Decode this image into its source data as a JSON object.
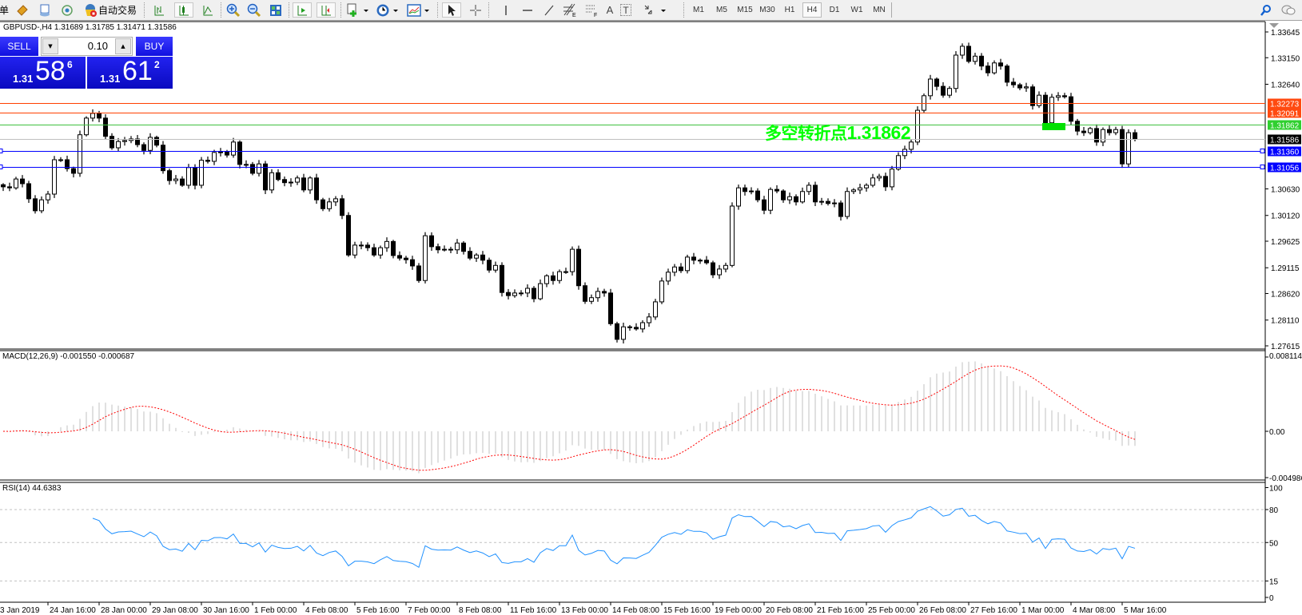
{
  "toolbar": {
    "left_clip_text": "单",
    "auto_trading_label": "自动交易",
    "icons": [
      "market-watch-icon",
      "terminal-icon",
      "signal-icon",
      "auto-trading-icon",
      "bar-chart-icon",
      "candlestick-icon",
      "line-chart-icon",
      "zoom-in-icon",
      "zoom-out-icon",
      "tile-windows-icon",
      "auto-scroll-icon",
      "chart-shift-icon",
      "indicators-icon",
      "periods-icon",
      "templates-icon",
      "cursor-icon",
      "crosshair-icon",
      "vertical-line-icon",
      "horizontal-line-icon",
      "trendline-icon",
      "fibonacci-icon",
      "text-icon",
      "text-label-icon",
      "arrows-icon",
      "search-icon",
      "chat-icon"
    ],
    "timeframes": [
      "M1",
      "M5",
      "M15",
      "M30",
      "H1",
      "H4",
      "D1",
      "W1",
      "MN"
    ],
    "active_timeframe": "H4",
    "fibo_sub": "E",
    "channel_sub": "F",
    "text_tool": "A",
    "label_tool": "T"
  },
  "symbol_header": "GBPUSD-,H4  1.31689 1.31785 1.31471 1.31586",
  "trade_panel": {
    "sell_label": "SELL",
    "buy_label": "BUY",
    "lot": "0.10",
    "sell_price": {
      "prefix": "1.31",
      "big": "58",
      "sup": "6"
    },
    "buy_price": {
      "prefix": "1.31",
      "big": "61",
      "sup": "2"
    },
    "color": "#1a1ae8"
  },
  "annotation": {
    "text": "多空转折点",
    "value": "1.31862",
    "color": "#00ff00"
  },
  "price_axis": {
    "labels": [
      "1.33645",
      "1.33150",
      "1.32640",
      "1.30630",
      "1.30120",
      "1.29625",
      "1.29115",
      "1.28620",
      "1.28110",
      "1.27615"
    ],
    "lines": [
      {
        "price": "1.32273",
        "color": "#ff4000",
        "tag_color": "#ff4a10"
      },
      {
        "price": "1.32091",
        "color": "#ff4000",
        "tag_color": "#ff4a10"
      },
      {
        "price": "1.31862",
        "color": "#40c040",
        "tag_color": "#30d030"
      },
      {
        "price": "1.31586",
        "color": "#c0c0c0",
        "tag_color": "#000000"
      },
      {
        "price": "1.31360",
        "color": "#0000ff",
        "tag_color": "#0000ff",
        "handles": true
      },
      {
        "price": "1.31056",
        "color": "#0000ff",
        "tag_color": "#0000ff",
        "handles": true
      }
    ]
  },
  "macd": {
    "label": "MACD(12,26,9) -0.001550 -0.000687",
    "axis": [
      "0.008114",
      "0.00",
      "-0.004986"
    ],
    "histogram_color": "#c0c0c0",
    "signal_color": "#ff0000"
  },
  "rsi": {
    "label": "RSI(14) 44.6383",
    "axis": [
      "100",
      "80",
      "50",
      "15",
      "0"
    ],
    "levels": [
      80,
      50,
      15
    ],
    "color": "#1e90ff"
  },
  "time_axis": [
    "3 Jan 2019",
    "24 Jan 16:00",
    "28 Jan 00:00",
    "29 Jan 08:00",
    "30 Jan 16:00",
    "1 Feb 00:00",
    "4 Feb 08:00",
    "5 Feb 16:00",
    "7 Feb 00:00",
    "8 Feb 08:00",
    "11 Feb 16:00",
    "13 Feb 00:00",
    "14 Feb 08:00",
    "15 Feb 16:00",
    "19 Feb 00:00",
    "20 Feb 08:00",
    "21 Feb 16:00",
    "25 Feb 00:00",
    "26 Feb 08:00",
    "27 Feb 16:00",
    "1 Mar 00:00",
    "4 Mar 08:00",
    "5 Mar 16:00"
  ],
  "chart_data": {
    "type": "candlestick",
    "symbol": "GBPUSD-",
    "timeframe": "H4",
    "ylim": [
      1.27615,
      1.33645
    ],
    "closes": [
      1.3067,
      1.3065,
      1.3082,
      1.3073,
      1.3044,
      1.3021,
      1.3042,
      1.3053,
      1.3119,
      1.3119,
      1.3102,
      1.3093,
      1.3167,
      1.3199,
      1.3208,
      1.3199,
      1.3164,
      1.3142,
      1.3154,
      1.3156,
      1.3159,
      1.3148,
      1.3137,
      1.3162,
      1.3147,
      1.3098,
      1.3079,
      1.3082,
      1.307,
      1.3104,
      1.307,
      1.3118,
      1.3116,
      1.3133,
      1.3134,
      1.3128,
      1.3153,
      1.311,
      1.311,
      1.3093,
      1.3111,
      1.3061,
      1.3094,
      1.3081,
      1.3075,
      1.3076,
      1.3084,
      1.3061,
      1.3084,
      1.3042,
      1.3025,
      1.3038,
      1.3044,
      1.3012,
      1.2936,
      1.2955,
      1.2955,
      1.295,
      1.2936,
      1.295,
      1.2962,
      1.2935,
      1.293,
      1.2927,
      1.2915,
      1.2887,
      1.2973,
      1.2952,
      1.2946,
      1.2947,
      1.2946,
      1.2959,
      1.2943,
      1.293,
      1.2936,
      1.2926,
      1.2907,
      1.2916,
      1.2864,
      1.2858,
      1.2863,
      1.2863,
      1.2872,
      1.2852,
      1.2881,
      1.2896,
      1.2887,
      1.2904,
      1.2904,
      1.2947,
      1.2877,
      1.2847,
      1.2854,
      1.2866,
      1.2863,
      1.2804,
      1.2774,
      1.2798,
      1.2797,
      1.2794,
      1.2806,
      1.2817,
      1.2846,
      1.2886,
      1.2903,
      1.2913,
      1.2906,
      1.2932,
      1.2926,
      1.2926,
      1.2921,
      1.2898,
      1.2909,
      1.2916,
      1.303,
      1.3065,
      1.3058,
      1.3059,
      1.3042,
      1.3022,
      1.3062,
      1.3059,
      1.3042,
      1.3048,
      1.3038,
      1.3058,
      1.307,
      1.3038,
      1.3039,
      1.3035,
      1.3036,
      1.301,
      1.3058,
      1.3061,
      1.3065,
      1.307,
      1.3084,
      1.3087,
      1.3067,
      1.3101,
      1.3127,
      1.3139,
      1.3153,
      1.3214,
      1.3242,
      1.3274,
      1.326,
      1.3243,
      1.3256,
      1.332,
      1.3337,
      1.3308,
      1.3318,
      1.3299,
      1.3286,
      1.3305,
      1.3299,
      1.3268,
      1.3263,
      1.3257,
      1.3259,
      1.3223,
      1.3243,
      1.319,
      1.3239,
      1.3242,
      1.324,
      1.3193,
      1.3174,
      1.3171,
      1.3179,
      1.3153,
      1.3177,
      1.3171,
      1.3177,
      1.3111,
      1.3171,
      1.31586
    ],
    "bull_color": "#ffffff",
    "bear_color": "#000000"
  }
}
